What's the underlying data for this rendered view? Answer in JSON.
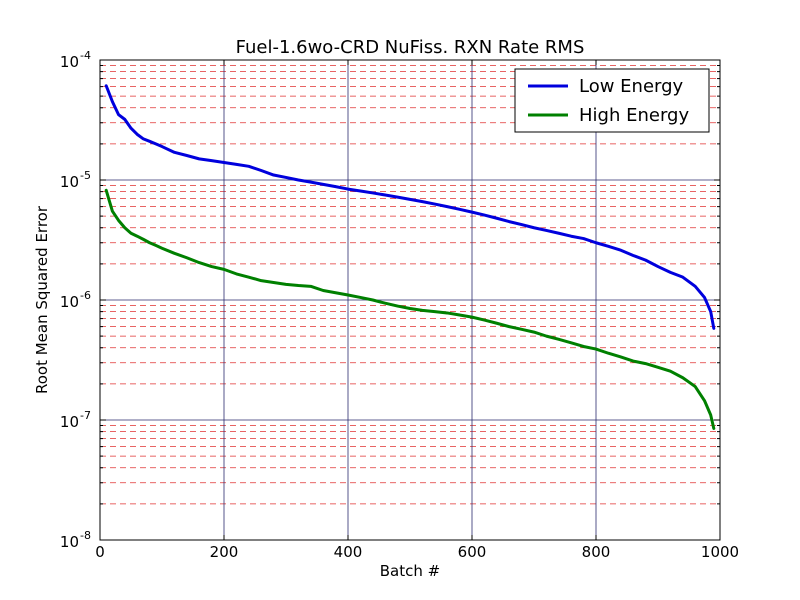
{
  "chart_data": {
    "type": "line",
    "title": "Fuel-1.6wo-CRD NuFiss. RXN Rate RMS",
    "xlabel": "Batch #",
    "ylabel": "Root Mean Squared Error",
    "xlim": [
      0,
      1000
    ],
    "ylim": [
      1e-08,
      0.0001
    ],
    "yscale": "log",
    "x_ticks": [
      {
        "value": 0,
        "label": "0"
      },
      {
        "value": 200,
        "label": "200"
      },
      {
        "value": 400,
        "label": "400"
      },
      {
        "value": 600,
        "label": "600"
      },
      {
        "value": 800,
        "label": "800"
      },
      {
        "value": 1000,
        "label": "1000"
      }
    ],
    "y_ticks": [
      {
        "value": 1e-08,
        "base": "10",
        "exp": "-8"
      },
      {
        "value": 1e-07,
        "base": "10",
        "exp": "-7"
      },
      {
        "value": 1e-06,
        "base": "10",
        "exp": "-6"
      },
      {
        "value": 1e-05,
        "base": "10",
        "exp": "-5"
      },
      {
        "value": 0.0001,
        "base": "10",
        "exp": "-4"
      }
    ],
    "grid": {
      "major": true,
      "minor": true,
      "major_color": "#2a2a6e",
      "minor_color": "#e03030"
    },
    "legend": {
      "placement": "top-right"
    },
    "series": [
      {
        "name": "Low Energy",
        "color": "#0000dd",
        "x": [
          10,
          20,
          30,
          40,
          50,
          60,
          70,
          80,
          90,
          100,
          120,
          140,
          160,
          180,
          200,
          220,
          240,
          260,
          280,
          300,
          320,
          340,
          360,
          380,
          400,
          420,
          440,
          460,
          480,
          500,
          520,
          540,
          560,
          580,
          600,
          620,
          640,
          660,
          680,
          700,
          720,
          740,
          760,
          780,
          800,
          820,
          840,
          860,
          880,
          900,
          920,
          940,
          960,
          975,
          985,
          990
        ],
        "y": [
          6.1e-05,
          4.5e-05,
          3.5e-05,
          3.2e-05,
          2.7e-05,
          2.4e-05,
          2.2e-05,
          2.1e-05,
          2e-05,
          1.9e-05,
          1.7e-05,
          1.6e-05,
          1.5e-05,
          1.45e-05,
          1.4e-05,
          1.35e-05,
          1.3e-05,
          1.2e-05,
          1.1e-05,
          1.05e-05,
          1e-05,
          9.6e-06,
          9.2e-06,
          8.8e-06,
          8.4e-06,
          8.1e-06,
          7.8e-06,
          7.5e-06,
          7.2e-06,
          6.9e-06,
          6.6e-06,
          6.3e-06,
          6e-06,
          5.7e-06,
          5.4e-06,
          5.1e-06,
          4.8e-06,
          4.5e-06,
          4.25e-06,
          4e-06,
          3.8e-06,
          3.6e-06,
          3.4e-06,
          3.25e-06,
          3e-06,
          2.8e-06,
          2.6e-06,
          2.35e-06,
          2.15e-06,
          1.9e-06,
          1.7e-06,
          1.55e-06,
          1.3e-06,
          1.05e-06,
          8e-07,
          5.8e-07
        ]
      },
      {
        "name": "High Energy",
        "color": "#008000",
        "x": [
          10,
          20,
          30,
          40,
          50,
          60,
          70,
          80,
          90,
          100,
          120,
          140,
          160,
          180,
          200,
          220,
          240,
          260,
          280,
          300,
          320,
          340,
          360,
          380,
          400,
          420,
          440,
          460,
          480,
          500,
          520,
          540,
          560,
          580,
          600,
          620,
          640,
          660,
          680,
          700,
          720,
          740,
          760,
          780,
          800,
          820,
          840,
          860,
          880,
          900,
          920,
          940,
          960,
          975,
          985,
          990
        ],
        "y": [
          8.2e-06,
          5.5e-06,
          4.6e-06,
          4e-06,
          3.6e-06,
          3.4e-06,
          3.2e-06,
          3e-06,
          2.85e-06,
          2.7e-06,
          2.45e-06,
          2.25e-06,
          2.05e-06,
          1.9e-06,
          1.8e-06,
          1.65e-06,
          1.55e-06,
          1.45e-06,
          1.4e-06,
          1.35e-06,
          1.32e-06,
          1.3e-06,
          1.2e-06,
          1.15e-06,
          1.1e-06,
          1.05e-06,
          1e-06,
          9.4e-07,
          8.9e-07,
          8.5e-07,
          8.2e-07,
          8e-07,
          7.8e-07,
          7.5e-07,
          7.2e-07,
          6.8e-07,
          6.4e-07,
          6e-07,
          5.7e-07,
          5.4e-07,
          5e-07,
          4.7e-07,
          4.4e-07,
          4.1e-07,
          3.9e-07,
          3.6e-07,
          3.35e-07,
          3.1e-07,
          2.95e-07,
          2.75e-07,
          2.55e-07,
          2.25e-07,
          1.9e-07,
          1.45e-07,
          1.1e-07,
          8.5e-08
        ]
      }
    ]
  }
}
